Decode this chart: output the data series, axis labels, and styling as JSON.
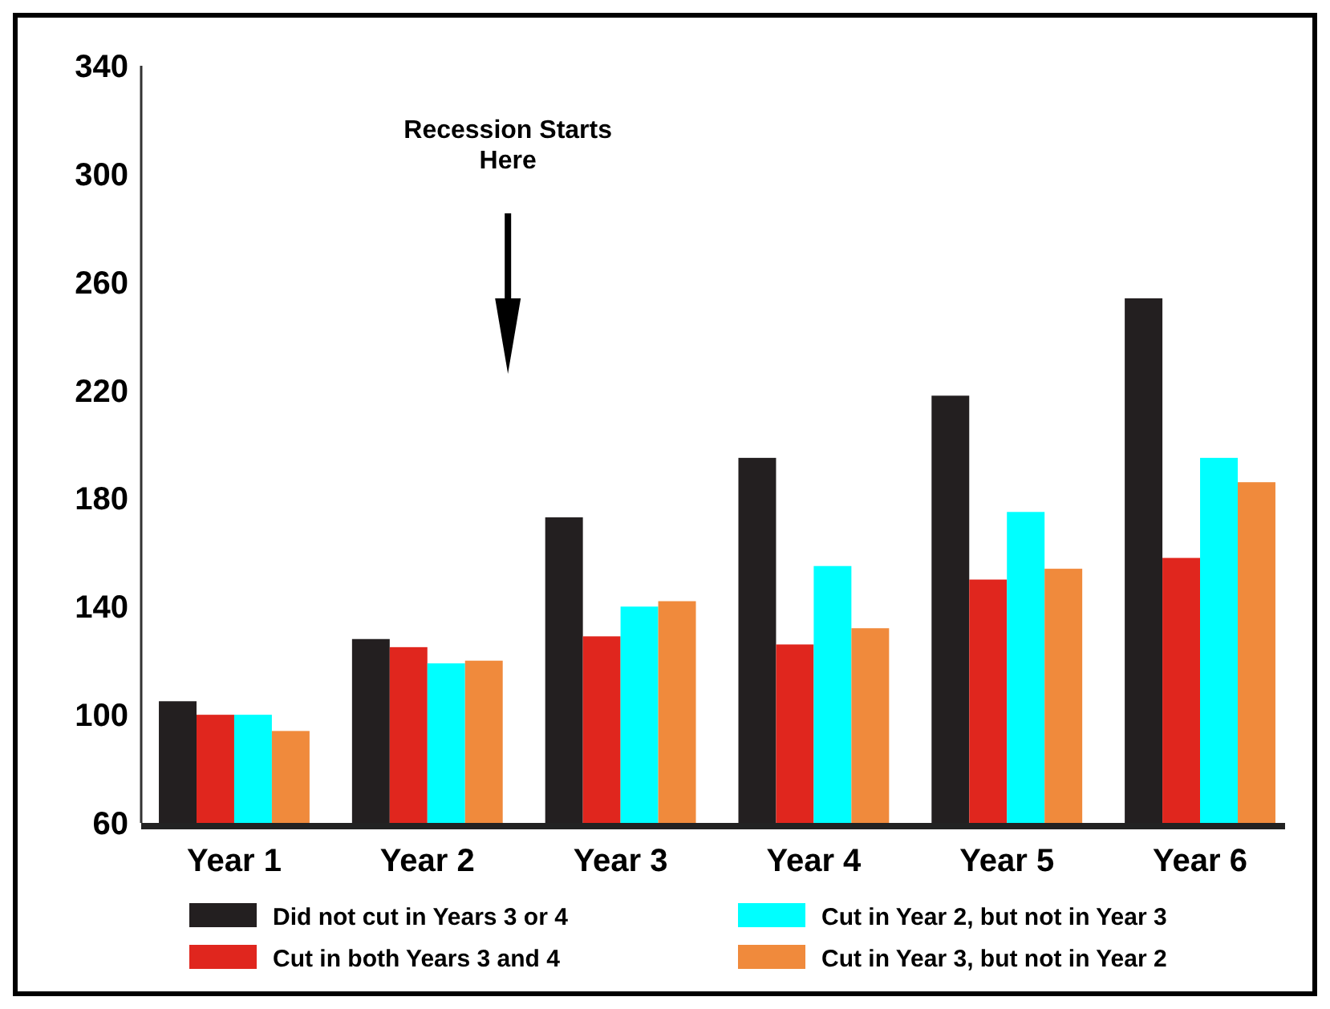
{
  "chart_data": {
    "type": "bar",
    "categories": [
      "Year 1",
      "Year 2",
      "Year 3",
      "Year 4",
      "Year 5",
      "Year 6"
    ],
    "series": [
      {
        "name": "Did not cut in Years 3 or 4",
        "color": "#231f20",
        "values": [
          105,
          128,
          173,
          195,
          218,
          254
        ]
      },
      {
        "name": "Cut in both Years 3 and 4",
        "color": "#e0261e",
        "values": [
          100,
          125,
          129,
          126,
          150,
          158
        ]
      },
      {
        "name": "Cut in Year 2, but not in Year 3",
        "color": "#00ffff",
        "values": [
          100,
          119,
          140,
          155,
          175,
          195
        ]
      },
      {
        "name": "Cut in Year 3, but not in Year 2",
        "color": "#f08a3c",
        "values": [
          94,
          120,
          142,
          132,
          154,
          186
        ]
      }
    ],
    "ylim": [
      60,
      340
    ],
    "yticks": [
      60,
      100,
      140,
      180,
      220,
      260,
      300,
      340
    ],
    "grid": false,
    "legend": "bottom",
    "annotations": [
      "Recession Starts Here"
    ]
  }
}
